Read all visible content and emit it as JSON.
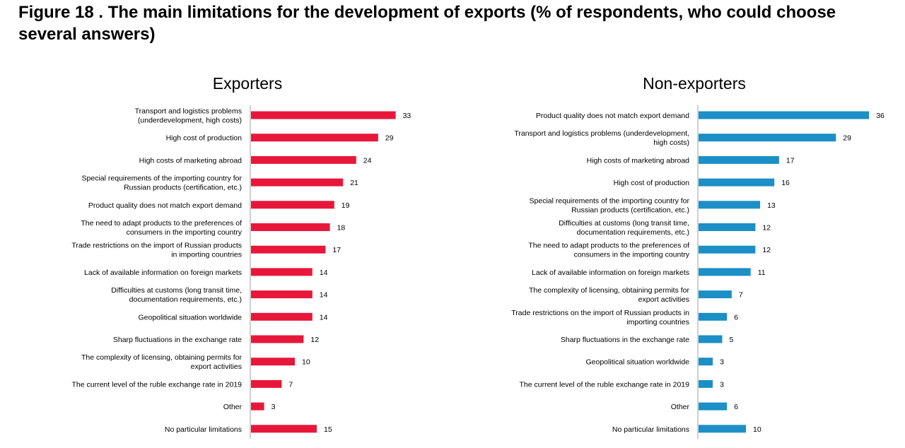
{
  "figure": {
    "title": "Figure 18 . The main limitations for the development of exports (% of respondents, who could choose several answers)"
  },
  "colors": {
    "exporters": "#e8173a",
    "non_exporters": "#1b8fc6"
  },
  "chart_data": [
    {
      "type": "bar",
      "orientation": "horizontal",
      "title": "Exporters",
      "categories": [
        "Transport and logistics problems\n(underdevelopment, high costs)",
        "High cost of production",
        "High costs of marketing abroad",
        "Special requirements of the importing country for\nRussian products (certification, etc.)",
        "Product quality does not match export demand",
        "The need to adapt products to the preferences of\nconsumers in the importing country",
        "Trade restrictions on the import of Russian products\nin importing countries",
        "Lack of available information on foreign markets",
        "Difficulties at customs (long transit time,\ndocumentation requirements, etc.)",
        "Geopolitical situation worldwide",
        "Sharp fluctuations in the exchange rate",
        "The complexity of licensing, obtaining permits for\nexport activities",
        "The current level of the ruble exchange rate in 2019",
        "Other",
        "No particular limitations"
      ],
      "values": [
        33,
        29,
        24,
        21,
        19,
        18,
        17,
        14,
        14,
        14,
        12,
        10,
        7,
        3,
        15
      ],
      "xlim": [
        0,
        36
      ],
      "grid": false,
      "legend": "none"
    },
    {
      "type": "bar",
      "orientation": "horizontal",
      "title": "Non-exporters",
      "categories": [
        "Product quality does not match export demand",
        "Transport and logistics problems (underdevelopment,\nhigh costs)",
        "High costs of marketing abroad",
        "High cost of production",
        "Special requirements of the importing country for\nRussian products (certification, etc.)",
        "Difficulties at customs (long transit time,\ndocumentation requirements, etc.)",
        "The need to adapt products to the preferences of\nconsumers in the importing country",
        "Lack of available information on foreign markets",
        "The complexity of licensing, obtaining permits for\nexport activities",
        "Trade restrictions on the import of Russian products in\nimporting countries",
        "Sharp fluctuations in the exchange rate",
        "Geopolitical situation worldwide",
        "The current level of the ruble exchange rate in 2019",
        "Other",
        "No particular limitations"
      ],
      "values": [
        36,
        29,
        17,
        16,
        13,
        12,
        12,
        11,
        7,
        6,
        5,
        3,
        3,
        6,
        10
      ],
      "xlim": [
        0,
        36
      ],
      "grid": false,
      "legend": "none"
    }
  ]
}
